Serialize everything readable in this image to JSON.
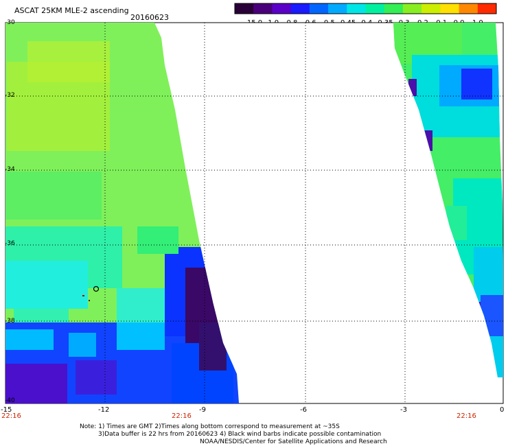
{
  "header": {
    "title": "ASCAT 25KM MLE-2 ascending",
    "date": "20160623"
  },
  "colorbar": {
    "tick_labels": [
      "-15.0",
      "-1.0",
      "-0.8",
      "-0.6",
      "-0.5",
      "-0.45",
      "-0.4",
      "-0.35",
      "-0.3",
      "-0.2",
      "-0.1",
      "0.0",
      "1.0"
    ],
    "colors": [
      "#2a0038",
      "#4a007a",
      "#5a00c8",
      "#1a1aff",
      "#0066ff",
      "#00aaff",
      "#00e5e5",
      "#00f0a0",
      "#33ee55",
      "#88ee22",
      "#ccee00",
      "#ffe000",
      "#ff8800",
      "#ff2a00"
    ]
  },
  "map": {
    "lat_labels": [
      "-30",
      "-32",
      "-34",
      "-36",
      "-38",
      "-40"
    ],
    "lon_labels": [
      "-15",
      "-12",
      "-9",
      "-6",
      "-3",
      "0"
    ],
    "time_labels": [
      "22:16",
      "22:16",
      "22:16"
    ]
  },
  "notes": {
    "line1": "Note: 1) Times are GMT 2)Times along bottom correspond to measurement at ~35S",
    "line2": "3)Data buffer is 22 hrs from 20160623 4) Black wind barbs indicate possible contamination",
    "line3": "NOAA/NESDIS/Center for Satellite Applications and Research"
  }
}
